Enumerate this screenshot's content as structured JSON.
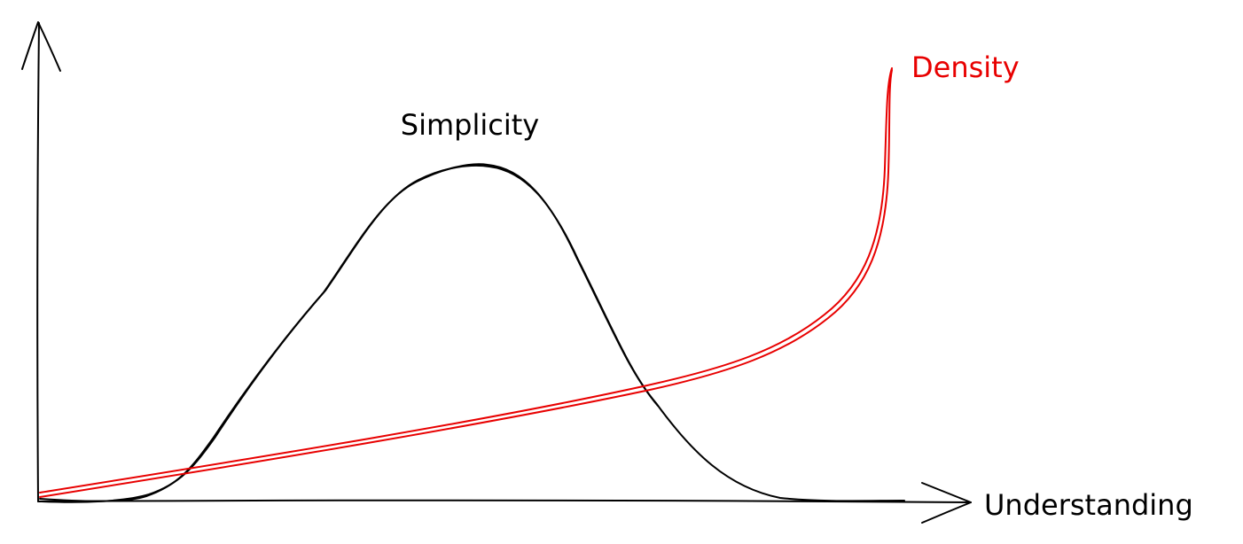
{
  "curves": [
    {
      "label": "Simplicity"
    },
    {
      "label": "Density"
    }
  ],
  "x_axis": {
    "label": "Understanding"
  }
}
